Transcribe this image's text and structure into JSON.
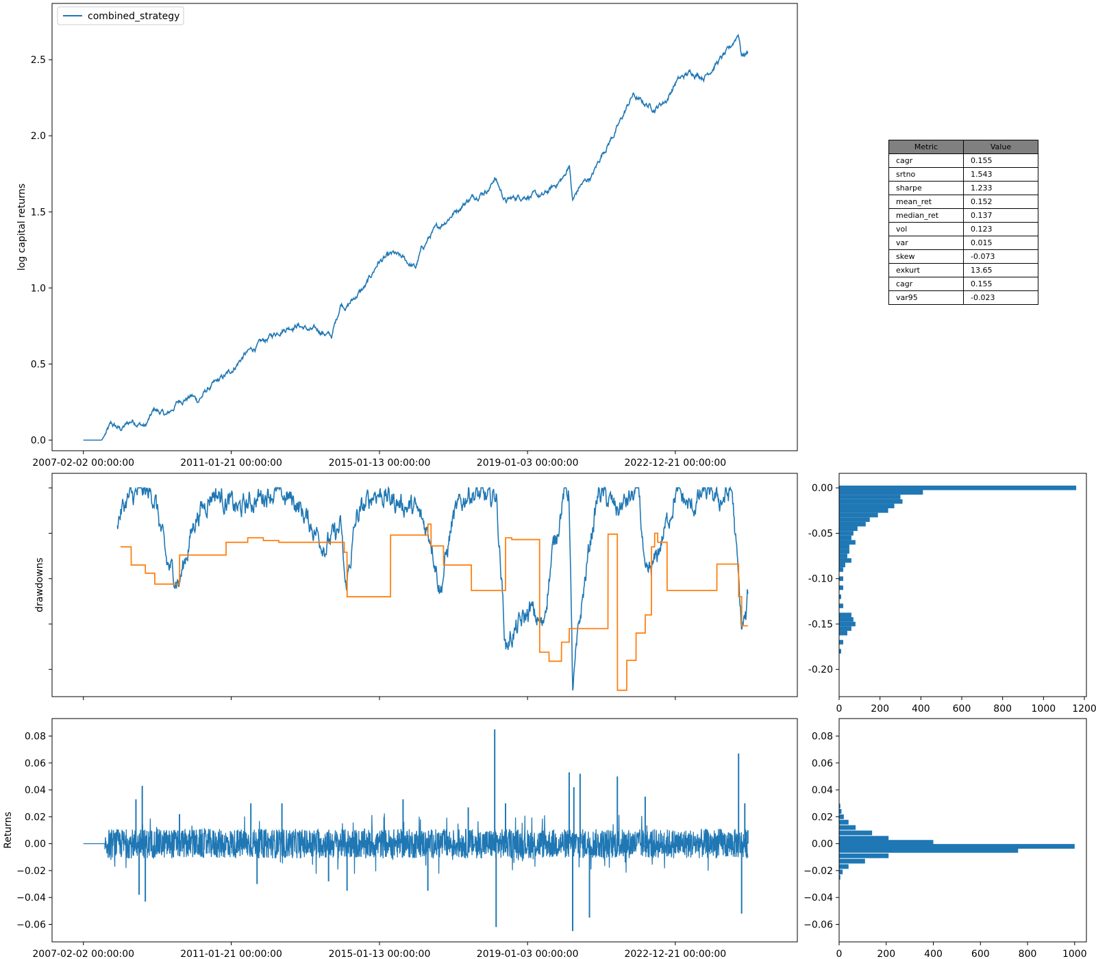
{
  "colors": {
    "blue": "#1f77b4",
    "orange": "#ff7f0e"
  },
  "legend": {
    "label": "combined_strategy"
  },
  "metrics_table": {
    "header_metric": "Metric",
    "header_value": "Value",
    "rows": [
      [
        "cagr",
        "0.155"
      ],
      [
        "srtno",
        "1.543"
      ],
      [
        "sharpe",
        "1.233"
      ],
      [
        "mean_ret",
        "0.152"
      ],
      [
        "median_ret",
        "0.137"
      ],
      [
        "vol",
        "0.123"
      ],
      [
        "var",
        "0.015"
      ],
      [
        "skew",
        "-0.073"
      ],
      [
        "exkurt",
        "13.65"
      ],
      [
        "cagr",
        "0.155"
      ],
      [
        "var95",
        "-0.023"
      ]
    ]
  },
  "chart_data": [
    {
      "id": "log_capital",
      "type": "line",
      "ylabel": "log capital returns",
      "ylim": [
        -0.07,
        2.87
      ],
      "y_ticks": [
        "0.0",
        "0.5",
        "1.0",
        "1.5",
        "2.0",
        "2.5"
      ],
      "x_ticks": [
        "2007-02-02 00:00:00",
        "2011-01-21 00:00:00",
        "2015-01-13 00:00:00",
        "2019-01-03 00:00:00",
        "2022-12-21 00:00:00"
      ],
      "x_range": [
        "2006-04-01",
        "2026-03-31"
      ],
      "series": [
        {
          "name": "combined_strategy",
          "x": [
            "2007-02-02",
            "2007-08-01",
            "2007-11-01",
            "2008-02-01",
            "2008-06-01",
            "2008-10-01",
            "2009-01-01",
            "2009-05-01",
            "2009-09-01",
            "2010-01-01",
            "2010-03-01",
            "2010-06-01",
            "2011-01-01",
            "2011-06-01",
            "2012-01-01",
            "2012-06-01",
            "2012-11-01",
            "2013-03-01",
            "2013-06-01",
            "2013-10-01",
            "2014-01-01",
            "2014-03-01",
            "2014-06-01",
            "2014-09-01",
            "2015-01-01",
            "2015-06-01",
            "2015-09-01",
            "2016-01-01",
            "2016-03-01",
            "2016-06-01",
            "2017-01-01",
            "2017-06-01",
            "2018-01-01",
            "2018-02-15",
            "2018-06-01",
            "2018-10-01",
            "2019-01-01",
            "2019-06-01",
            "2020-01-01",
            "2020-02-15",
            "2020-03-20",
            "2020-06-01",
            "2020-10-01",
            "2021-01-01",
            "2021-06-01",
            "2021-11-01",
            "2022-01-01",
            "2022-06-01",
            "2022-10-01",
            "2023-01-01",
            "2023-06-01",
            "2023-10-01",
            "2024-02-01",
            "2024-06-01",
            "2024-09-01",
            "2024-10-01",
            "2024-12-01"
          ],
          "y": [
            0.0,
            0.0,
            0.1,
            0.07,
            0.13,
            0.09,
            0.2,
            0.16,
            0.26,
            0.29,
            0.26,
            0.33,
            0.44,
            0.56,
            0.66,
            0.73,
            0.76,
            0.72,
            0.72,
            0.68,
            0.9,
            0.88,
            0.95,
            1.01,
            1.17,
            1.22,
            1.19,
            1.13,
            1.25,
            1.35,
            1.49,
            1.58,
            1.66,
            1.73,
            1.57,
            1.6,
            1.61,
            1.6,
            1.73,
            1.82,
            1.57,
            1.67,
            1.74,
            1.88,
            2.05,
            2.27,
            2.23,
            2.18,
            2.24,
            2.36,
            2.42,
            2.39,
            2.48,
            2.56,
            2.68,
            2.53,
            2.55
          ]
        }
      ]
    },
    {
      "id": "drawdowns",
      "type": "line",
      "ylabel": "drawdowns",
      "ylim": [
        -0.23,
        0.016
      ],
      "x_range": [
        "2006-04-01",
        "2026-03-31"
      ],
      "series": [
        {
          "x": [
            "2008-01-01",
            "2008-04-01",
            "2008-09-01",
            "2009-01-01",
            "2009-05-01",
            "2009-09-01",
            "2010-02-01",
            "2010-08-01",
            "2011-04-01",
            "2012-02-01",
            "2012-10-01",
            "2013-08-01",
            "2014-01-01",
            "2014-02-15",
            "2014-06-01",
            "2014-12-01",
            "2015-06-01",
            "2016-01-01",
            "2016-06-01",
            "2016-09-01",
            "2017-01-01",
            "2017-06-01",
            "2018-01-01",
            "2018-03-01",
            "2018-06-01",
            "2018-10-01",
            "2019-02-01",
            "2019-06-01",
            "2019-09-01",
            "2020-01-01",
            "2020-02-15",
            "2020-03-20",
            "2020-06-01",
            "2020-09-01",
            "2020-12-01",
            "2021-06-01",
            "2022-01-01",
            "2022-03-01",
            "2022-06-01",
            "2023-01-01",
            "2023-06-01",
            "2023-10-01",
            "2024-03-01",
            "2024-07-01",
            "2024-09-01",
            "2024-10-01",
            "2024-11-15",
            "2024-12-01"
          ],
          "y": [
            -0.03,
            -0.01,
            0.0,
            -0.005,
            -0.08,
            -0.1,
            -0.03,
            0.0,
            -0.02,
            0.0,
            -0.01,
            -0.06,
            -0.04,
            -0.11,
            -0.03,
            0.0,
            -0.01,
            -0.02,
            -0.05,
            -0.11,
            -0.03,
            0.0,
            -0.01,
            0.0,
            -0.17,
            -0.15,
            -0.13,
            -0.15,
            -0.07,
            0.0,
            0.0,
            -0.22,
            -0.14,
            -0.06,
            0.0,
            -0.02,
            0.0,
            -0.1,
            -0.08,
            0.0,
            -0.02,
            0.0,
            -0.01,
            0.0,
            -0.1,
            -0.15,
            -0.14,
            -0.115
          ]
        },
        {
          "x": [
            "2008-02-01",
            "2008-05-15",
            "2008-05-16",
            "2008-10-01",
            "2008-10-02",
            "2009-01-01",
            "2009-01-02",
            "2009-09-01",
            "2009-09-02",
            "2010-12-01",
            "2010-12-02",
            "2011-07-01",
            "2011-07-02",
            "2011-12-01",
            "2011-12-02",
            "2012-05-01",
            "2012-05-02",
            "2013-01-01",
            "2013-01-02",
            "2014-02-01",
            "2014-02-02",
            "2014-03-01",
            "2014-03-02",
            "2015-05-01",
            "2015-05-02",
            "2016-05-01",
            "2016-05-02",
            "2016-06-01",
            "2016-06-02",
            "2016-10-01",
            "2016-10-02",
            "2017-07-01",
            "2017-07-02",
            "2018-06-01",
            "2018-06-02",
            "2018-08-01",
            "2018-08-02",
            "2019-05-01",
            "2019-05-02",
            "2019-08-01",
            "2019-08-02",
            "2019-12-01",
            "2019-12-02",
            "2020-02-15",
            "2020-02-16",
            "2021-03-01",
            "2021-03-02",
            "2021-06-01",
            "2021-06-02",
            "2021-09-01",
            "2021-09-02",
            "2021-12-01",
            "2021-12-02",
            "2022-03-01",
            "2022-03-02",
            "2022-05-01",
            "2022-05-02",
            "2022-06-01",
            "2022-06-02",
            "2022-07-01",
            "2022-07-02",
            "2022-10-01",
            "2022-10-02",
            "2024-02-01",
            "2024-02-02",
            "2024-09-01",
            "2024-09-02",
            "2024-10-01",
            "2024-10-02",
            "2024-12-01"
          ],
          "y": [
            -0.065,
            -0.065,
            -0.085,
            -0.085,
            -0.094,
            -0.094,
            -0.106,
            -0.106,
            -0.074,
            -0.074,
            -0.06,
            -0.06,
            -0.055,
            -0.055,
            -0.058,
            -0.058,
            -0.06,
            -0.06,
            -0.06,
            -0.06,
            -0.071,
            -0.071,
            -0.12,
            -0.12,
            -0.052,
            -0.052,
            -0.04,
            -0.04,
            -0.064,
            -0.064,
            -0.085,
            -0.085,
            -0.113,
            -0.113,
            -0.055,
            -0.055,
            -0.057,
            -0.057,
            -0.181,
            -0.181,
            -0.191,
            -0.191,
            -0.17,
            -0.17,
            -0.155,
            -0.155,
            -0.051,
            -0.051,
            -0.223,
            -0.223,
            -0.19,
            -0.19,
            -0.16,
            -0.16,
            -0.14,
            -0.14,
            -0.065,
            -0.065,
            -0.05,
            -0.05,
            -0.06,
            -0.06,
            -0.113,
            -0.113,
            -0.084,
            -0.084,
            -0.12,
            -0.12,
            -0.152,
            -0.152
          ]
        }
      ]
    },
    {
      "id": "drawdowns_hist",
      "type": "bar",
      "orientation": "horizontal",
      "ylim": [
        -0.23,
        0.016
      ],
      "xlim": [
        0,
        1210
      ],
      "y_ticks": [
        "0.00",
        "-0.05",
        "-0.10",
        "-0.15",
        "-0.20"
      ],
      "x_ticks": [
        "0",
        "200",
        "400",
        "600",
        "800",
        "1000",
        "1200"
      ],
      "bin_centers": [
        0.0,
        -0.005,
        -0.01,
        -0.015,
        -0.02,
        -0.025,
        -0.03,
        -0.035,
        -0.04,
        -0.045,
        -0.05,
        -0.055,
        -0.06,
        -0.065,
        -0.07,
        -0.075,
        -0.08,
        -0.085,
        -0.09,
        -0.1,
        -0.11,
        -0.12,
        -0.13,
        -0.14,
        -0.145,
        -0.15,
        -0.155,
        -0.16,
        -0.17,
        -0.18
      ],
      "values": [
        1160,
        410,
        300,
        310,
        270,
        240,
        190,
        150,
        130,
        90,
        70,
        60,
        80,
        50,
        50,
        40,
        60,
        30,
        20,
        20,
        20,
        10,
        20,
        60,
        70,
        80,
        60,
        40,
        20,
        10
      ]
    },
    {
      "id": "returns",
      "type": "line",
      "ylabel": "Returns",
      "ylim": [
        -0.073,
        0.093
      ],
      "y_ticks": [
        "0.08",
        "0.06",
        "0.04",
        "0.02",
        "0.00",
        "−0.02",
        "−0.04",
        "−0.06"
      ],
      "x_ticks": [
        "2007-02-02 00:00:00",
        "2011-01-21 00:00:00",
        "2015-01-13 00:00:00",
        "2019-01-03 00:00:00",
        "2022-12-21 00:00:00"
      ],
      "x_range": [
        "2006-04-01",
        "2026-03-31"
      ],
      "series": [
        {
          "x": [
            "2007-02-02",
            "2007-09-01",
            "2008-07-01",
            "2008-08-01",
            "2008-09-01",
            "2008-10-01",
            "2009-09-01",
            "2011-08-01",
            "2011-10-01",
            "2012-06-01",
            "2013-09-01",
            "2014-03-01",
            "2015-09-01",
            "2016-05-01",
            "2017-06-01",
            "2018-02-15",
            "2018-03-01",
            "2018-06-01",
            "2020-02-15",
            "2020-03-20",
            "2020-04-01",
            "2020-06-01",
            "2020-09-01",
            "2021-06-01",
            "2022-03-01",
            "2024-09-01",
            "2024-10-01",
            "2024-11-01",
            "2024-12-01"
          ],
          "y": [
            0.0,
            0.0,
            0.033,
            -0.038,
            0.043,
            -0.043,
            0.022,
            0.03,
            -0.03,
            0.03,
            -0.028,
            -0.035,
            0.033,
            -0.035,
            0.027,
            0.085,
            -0.062,
            0.03,
            0.053,
            -0.065,
            0.042,
            0.052,
            -0.055,
            0.05,
            0.035,
            0.067,
            -0.052,
            0.03,
            0.01
          ]
        }
      ]
    },
    {
      "id": "returns_hist",
      "type": "bar",
      "orientation": "horizontal",
      "ylim": [
        -0.073,
        0.093
      ],
      "xlim": [
        0,
        1050
      ],
      "y_ticks": [
        "0.08",
        "0.06",
        "0.04",
        "0.02",
        "0.00",
        "−0.02",
        "−0.04",
        "−0.06"
      ],
      "x_ticks": [
        "0",
        "200",
        "400",
        "600",
        "800",
        "1000"
      ],
      "bin_centers": [
        0.028,
        0.024,
        0.02,
        0.016,
        0.012,
        0.008,
        0.004,
        0.001,
        -0.002,
        -0.005,
        -0.009,
        -0.013,
        -0.017,
        -0.021,
        -0.025
      ],
      "values": [
        5,
        10,
        20,
        40,
        70,
        140,
        210,
        400,
        1000,
        760,
        210,
        110,
        40,
        15,
        5
      ]
    }
  ]
}
